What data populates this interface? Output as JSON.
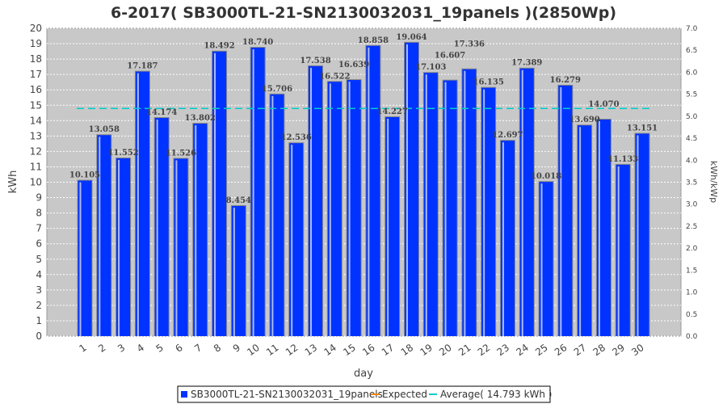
{
  "chart_data": {
    "type": "bar",
    "title": "6-2017( SB3000TL-21-SN2130032031_19panels )(2850Wp)",
    "xlabel": "day",
    "ylabel": "kWh",
    "y2label": "kWh/kWp",
    "ylim": [
      0,
      20
    ],
    "y2lim": [
      0,
      7.0
    ],
    "yticks": [
      "0",
      "1",
      "2",
      "3",
      "4",
      "5",
      "6",
      "7",
      "8",
      "9",
      "10",
      "11",
      "12",
      "13",
      "14",
      "15",
      "16",
      "17",
      "18",
      "19",
      "20"
    ],
    "y2ticks": [
      "0.0",
      "0.5",
      "1.0",
      "1.5",
      "2.0",
      "2.5",
      "3.0",
      "3.5",
      "4.0",
      "4.5",
      "5.0",
      "5.5",
      "6.0",
      "6.5",
      "7.0"
    ],
    "categories": [
      "1",
      "2",
      "3",
      "4",
      "5",
      "6",
      "7",
      "8",
      "9",
      "10",
      "11",
      "12",
      "13",
      "14",
      "15",
      "16",
      "17",
      "18",
      "19",
      "20",
      "21",
      "22",
      "23",
      "24",
      "25",
      "26",
      "27",
      "28",
      "29",
      "30"
    ],
    "series": [
      {
        "name": "SB3000TL-21-SN2130032031_19panels",
        "color": "#0033ff",
        "values": [
          10.105,
          13.058,
          11.552,
          17.187,
          14.174,
          11.526,
          13.802,
          18.492,
          8.454,
          18.74,
          15.706,
          12.536,
          17.538,
          16.522,
          16.639,
          18.858,
          14.227,
          19.064,
          17.103,
          16.607,
          17.336,
          16.135,
          12.697,
          17.389,
          10.018,
          16.279,
          13.69,
          14.07,
          11.133,
          13.151
        ]
      }
    ],
    "data_labels": [
      "10.105",
      "13.058",
      "11.552",
      "17.187",
      "14.174",
      "11.526",
      "13.802",
      "18.492",
      "8.454",
      "18.740",
      "15.706",
      "12.536",
      "17.538",
      "16.522",
      "16.639",
      "18.858",
      "14.227",
      "19.064",
      "17.103",
      "16.607",
      "17.336",
      "16.135",
      "12.697",
      "17.389",
      "10.018",
      "16.279",
      "13.690",
      "14.070",
      "11.133",
      "13.151"
    ],
    "average": 14.793,
    "average_color": "#00cccc",
    "expected_color": "#ff8800",
    "legend": {
      "placement": "bottom",
      "items": [
        "SB3000TL-21-SN2130032031_19panels",
        "Expected",
        "Average( 14.793 kWh )"
      ]
    },
    "grid": true
  }
}
